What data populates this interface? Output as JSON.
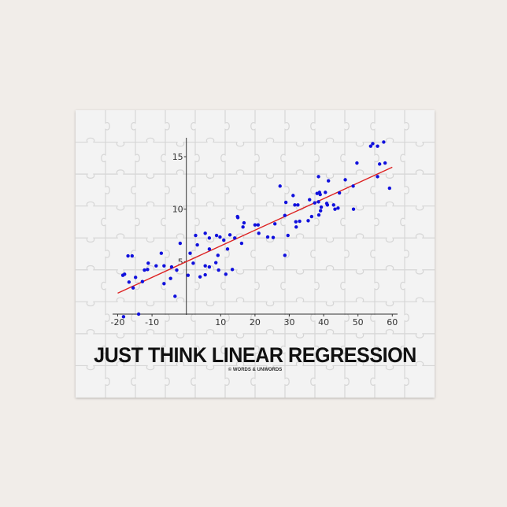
{
  "title": "JUST THINK LINEAR REGRESSION",
  "credit": "© WORDS & UNWORDS",
  "colors": {
    "points": "#1010dd",
    "line": "#dd2222",
    "background": "#f1ede9",
    "board": "#f3f3f3"
  },
  "chart_data": {
    "type": "scatter",
    "title": "",
    "xlabel": "",
    "ylabel": "",
    "xlim": [
      -20,
      60
    ],
    "ylim": [
      0,
      17
    ],
    "xticks": [
      "-20",
      "-10",
      "10",
      "20",
      "30",
      "40",
      "50",
      "60"
    ],
    "yticks": [
      "5",
      "10",
      "15"
    ],
    "grid": false,
    "regression_line": {
      "slope": 0.15,
      "intercept": 5.0,
      "x_range": [
        -20,
        60
      ]
    },
    "points": [
      [
        -18.5,
        3.7
      ],
      [
        -18.0,
        3.8
      ],
      [
        -17.0,
        5.55
      ],
      [
        -15.8,
        5.55
      ],
      [
        -16.7,
        3.05
      ],
      [
        -15.5,
        2.5
      ],
      [
        -14.8,
        3.5
      ],
      [
        -12.8,
        3.1
      ],
      [
        -12.2,
        4.2
      ],
      [
        -11.3,
        4.25
      ],
      [
        -11.1,
        4.85
      ],
      [
        -8.8,
        4.6
      ],
      [
        -7.3,
        5.8
      ],
      [
        -6.5,
        4.6
      ],
      [
        -6.5,
        2.9
      ],
      [
        -4.6,
        3.4
      ],
      [
        -4.3,
        4.5
      ],
      [
        -3.3,
        1.7
      ],
      [
        -2.8,
        4.2
      ],
      [
        -1.8,
        6.75
      ],
      [
        -18.3,
        -0.25
      ],
      [
        -13.9,
        0
      ],
      [
        0.5,
        3.7
      ],
      [
        1.1,
        5.8
      ],
      [
        2.0,
        4.85
      ],
      [
        2.7,
        7.5
      ],
      [
        3.2,
        6.6
      ],
      [
        4.0,
        3.55
      ],
      [
        5.5,
        7.7
      ],
      [
        5.5,
        4.6
      ],
      [
        5.5,
        3.75
      ],
      [
        6.7,
        7.25
      ],
      [
        6.7,
        6.2
      ],
      [
        6.7,
        4.5
      ],
      [
        8.6,
        4.9
      ],
      [
        8.8,
        7.5
      ],
      [
        9.2,
        5.6
      ],
      [
        9.4,
        4.2
      ],
      [
        9.8,
        7.35
      ],
      [
        10.9,
        7.05
      ],
      [
        11.5,
        3.8
      ],
      [
        12.0,
        6.2
      ],
      [
        12.7,
        7.55
      ],
      [
        13.4,
        4.25
      ],
      [
        14.1,
        7.25
      ],
      [
        14.9,
        9.3
      ],
      [
        15.0,
        9.2
      ],
      [
        16.1,
        6.75
      ],
      [
        16.5,
        8.3
      ],
      [
        16.8,
        8.7
      ],
      [
        20.0,
        8.5
      ],
      [
        20.9,
        8.5
      ],
      [
        21.1,
        7.7
      ],
      [
        23.7,
        7.35
      ],
      [
        25.3,
        7.3
      ],
      [
        25.8,
        8.6
      ],
      [
        27.3,
        12.2
      ],
      [
        28.7,
        9.4
      ],
      [
        28.7,
        5.6
      ],
      [
        29.0,
        10.65
      ],
      [
        29.6,
        7.5
      ],
      [
        31.1,
        11.3
      ],
      [
        31.6,
        10.4
      ],
      [
        31.9,
        8.8
      ],
      [
        32.0,
        8.3
      ],
      [
        32.5,
        10.4
      ],
      [
        33.0,
        8.85
      ],
      [
        35.5,
        8.9
      ],
      [
        35.9,
        10.9
      ],
      [
        36.5,
        9.3
      ],
      [
        37.4,
        10.6
      ],
      [
        38.1,
        11.5
      ],
      [
        38.5,
        13.1
      ],
      [
        38.5,
        10.7
      ],
      [
        38.6,
        9.45
      ],
      [
        38.8,
        11.6
      ],
      [
        39.0,
        11.4
      ],
      [
        39.1,
        9.85
      ],
      [
        39.3,
        10.2
      ],
      [
        40.5,
        11.6
      ],
      [
        40.9,
        10.55
      ],
      [
        41.1,
        10.4
      ],
      [
        41.4,
        12.7
      ],
      [
        42.9,
        10.4
      ],
      [
        43.3,
        10.0
      ],
      [
        44.2,
        10.1
      ],
      [
        44.6,
        11.55
      ],
      [
        46.3,
        12.8
      ],
      [
        48.6,
        12.2
      ],
      [
        48.7,
        10.0
      ],
      [
        49.7,
        14.4
      ],
      [
        53.7,
        16.0
      ],
      [
        54.3,
        16.25
      ],
      [
        55.7,
        16.0
      ],
      [
        55.7,
        13.1
      ],
      [
        56.3,
        14.3
      ],
      [
        57.5,
        16.4
      ],
      [
        57.9,
        14.4
      ],
      [
        59.2,
        12.0
      ]
    ]
  }
}
